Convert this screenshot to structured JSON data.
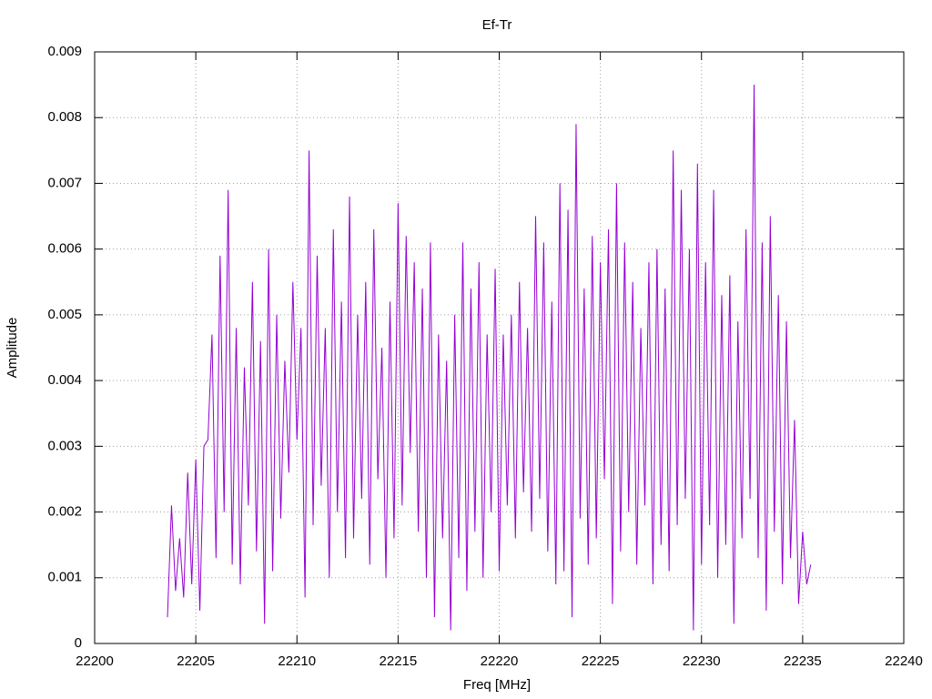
{
  "chart_data": {
    "type": "line",
    "title": "Ef-Tr",
    "xlabel": "Freq [MHz]",
    "ylabel": "Amplitude",
    "xlim": [
      22200,
      22240
    ],
    "xticks": [
      22200,
      22205,
      22210,
      22215,
      22220,
      22225,
      22230,
      22235,
      22240
    ],
    "ylim": [
      0,
      0.009
    ],
    "yticks": [
      0,
      0.001,
      0.002,
      0.003,
      0.004,
      0.005,
      0.006,
      0.007,
      0.008,
      0.009
    ],
    "grid": true,
    "x": [
      22203.6,
      22203.8,
      22204.0,
      22204.2,
      22204.4,
      22204.6,
      22204.8,
      22205.0,
      22205.2,
      22205.4,
      22205.6,
      22205.8,
      22206.0,
      22206.2,
      22206.4,
      22206.6,
      22206.8,
      22207.0,
      22207.2,
      22207.4,
      22207.6,
      22207.8,
      22208.0,
      22208.2,
      22208.4,
      22208.6,
      22208.8,
      22209.0,
      22209.2,
      22209.4,
      22209.6,
      22209.8,
      22210.0,
      22210.2,
      22210.4,
      22210.6,
      22210.8,
      22211.0,
      22211.2,
      22211.4,
      22211.6,
      22211.8,
      22212.0,
      22212.2,
      22212.4,
      22212.6,
      22212.8,
      22213.0,
      22213.2,
      22213.4,
      22213.6,
      22213.8,
      22214.0,
      22214.2,
      22214.4,
      22214.6,
      22214.8,
      22215.0,
      22215.2,
      22215.4,
      22215.6,
      22215.8,
      22216.0,
      22216.2,
      22216.4,
      22216.6,
      22216.8,
      22217.0,
      22217.2,
      22217.4,
      22217.6,
      22217.8,
      22218.0,
      22218.2,
      22218.4,
      22218.6,
      22218.8,
      22219.0,
      22219.2,
      22219.4,
      22219.6,
      22219.8,
      22220.0,
      22220.2,
      22220.4,
      22220.6,
      22220.8,
      22221.0,
      22221.2,
      22221.4,
      22221.6,
      22221.8,
      22222.0,
      22222.2,
      22222.4,
      22222.6,
      22222.8,
      22223.0,
      22223.2,
      22223.4,
      22223.6,
      22223.8,
      22224.0,
      22224.2,
      22224.4,
      22224.6,
      22224.8,
      22225.0,
      22225.2,
      22225.4,
      22225.6,
      22225.8,
      22226.0,
      22226.2,
      22226.4,
      22226.6,
      22226.8,
      22227.0,
      22227.2,
      22227.4,
      22227.6,
      22227.8,
      22228.0,
      22228.2,
      22228.4,
      22228.6,
      22228.8,
      22229.0,
      22229.2,
      22229.4,
      22229.6,
      22229.8,
      22230.0,
      22230.2,
      22230.4,
      22230.6,
      22230.8,
      22231.0,
      22231.2,
      22231.4,
      22231.6,
      22231.8,
      22232.0,
      22232.2,
      22232.4,
      22232.6,
      22232.8,
      22233.0,
      22233.2,
      22233.4,
      22233.6,
      22233.8,
      22234.0,
      22234.2,
      22234.4,
      22234.6,
      22234.8,
      22235.0,
      22235.2,
      22235.4
    ],
    "series": [
      {
        "color": "#9400d3",
        "values": [
          0.0004,
          0.0021,
          0.0008,
          0.0016,
          0.0007,
          0.0026,
          0.0009,
          0.0028,
          0.0005,
          0.003,
          0.0031,
          0.0047,
          0.0013,
          0.0059,
          0.002,
          0.0069,
          0.0012,
          0.0048,
          0.0009,
          0.0042,
          0.0021,
          0.0055,
          0.0014,
          0.0046,
          0.0003,
          0.006,
          0.0011,
          0.005,
          0.0019,
          0.0043,
          0.0026,
          0.0055,
          0.0031,
          0.0048,
          0.0007,
          0.0075,
          0.0018,
          0.0059,
          0.0024,
          0.0048,
          0.001,
          0.0063,
          0.002,
          0.0052,
          0.0013,
          0.0068,
          0.0016,
          0.005,
          0.0022,
          0.0055,
          0.0012,
          0.0063,
          0.0025,
          0.0045,
          0.001,
          0.0052,
          0.0016,
          0.0067,
          0.0021,
          0.0062,
          0.0029,
          0.0058,
          0.0017,
          0.0054,
          0.001,
          0.0061,
          0.0004,
          0.0047,
          0.0016,
          0.0043,
          0.0002,
          0.005,
          0.0013,
          0.0061,
          0.0008,
          0.0054,
          0.0017,
          0.0058,
          0.001,
          0.0047,
          0.002,
          0.0057,
          0.0011,
          0.0047,
          0.0021,
          0.005,
          0.0016,
          0.0055,
          0.0023,
          0.0048,
          0.0017,
          0.0065,
          0.0022,
          0.0061,
          0.0014,
          0.0052,
          0.0009,
          0.007,
          0.0011,
          0.0066,
          0.0004,
          0.0079,
          0.0019,
          0.0054,
          0.0012,
          0.0062,
          0.0016,
          0.0058,
          0.0025,
          0.0063,
          0.0006,
          0.007,
          0.0014,
          0.0061,
          0.002,
          0.0055,
          0.0012,
          0.0048,
          0.0021,
          0.0058,
          0.0009,
          0.006,
          0.0015,
          0.0054,
          0.0011,
          0.0075,
          0.0018,
          0.0069,
          0.0022,
          0.006,
          0.0002,
          0.0073,
          0.0012,
          0.0058,
          0.0018,
          0.0069,
          0.001,
          0.0053,
          0.0015,
          0.0056,
          0.0003,
          0.0049,
          0.0016,
          0.0063,
          0.0022,
          0.0085,
          0.0013,
          0.0061,
          0.0005,
          0.0065,
          0.0017,
          0.0053,
          0.0009,
          0.0049,
          0.0013,
          0.0034,
          0.0006,
          0.0017,
          0.0009,
          0.0012
        ]
      }
    ]
  }
}
